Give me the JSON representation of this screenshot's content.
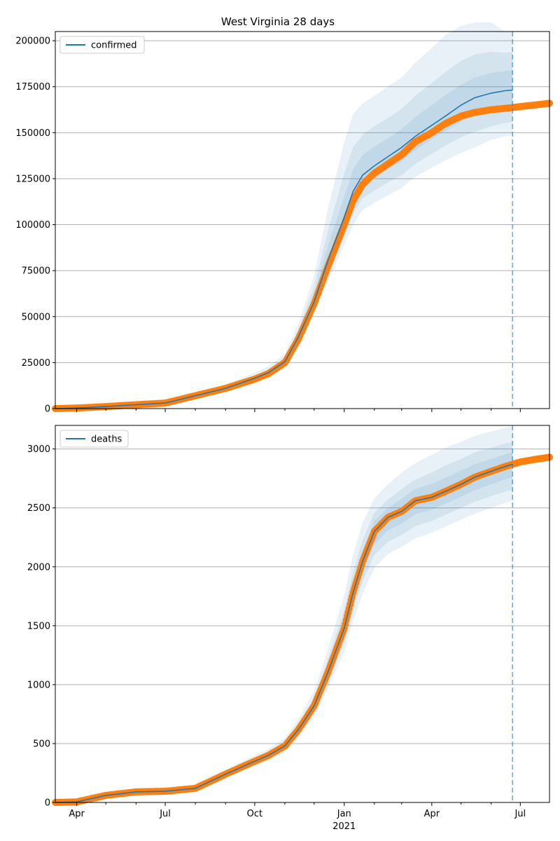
{
  "title": "West Virginia 28 days",
  "colors": {
    "forecast": "#1f77b4",
    "observed": "#ff7f0e",
    "band": "#1f77b4",
    "grid": "#b0b0b0"
  },
  "x_axis": {
    "min": "2020-03-10",
    "max": "2021-07-31",
    "ticks": [
      {
        "date": "2020-04-01",
        "label": "Apr"
      },
      {
        "date": "2020-07-01",
        "label": "Jul"
      },
      {
        "date": "2020-10-01",
        "label": "Oct"
      },
      {
        "date": "2021-01-01",
        "label": "Jan"
      },
      {
        "date": "2021-04-01",
        "label": "Apr"
      },
      {
        "date": "2021-07-01",
        "label": "Jul"
      }
    ],
    "year_label": "2021",
    "forecast_start": "2021-06-23"
  },
  "chart_data": [
    {
      "type": "line",
      "legend": "confirmed",
      "legend_position": "upper-left",
      "grid": "horizontal",
      "ylim": [
        0,
        205000
      ],
      "yticks": [
        {
          "value": 0,
          "label": "0"
        },
        {
          "value": 25000,
          "label": "25000"
        },
        {
          "value": 50000,
          "label": "50000"
        },
        {
          "value": 75000,
          "label": "75000"
        },
        {
          "value": 100000,
          "label": "100000"
        },
        {
          "value": 125000,
          "label": "125000"
        },
        {
          "value": 150000,
          "label": "150000"
        },
        {
          "value": 175000,
          "label": "175000"
        },
        {
          "value": 200000,
          "label": "200000"
        }
      ],
      "observed": {
        "x": [
          "2020-03-10",
          "2020-04-01",
          "2020-05-01",
          "2020-06-01",
          "2020-07-01",
          "2020-07-15",
          "2020-08-01",
          "2020-09-01",
          "2020-10-01",
          "2020-10-15",
          "2020-11-01",
          "2020-11-15",
          "2020-12-01",
          "2020-12-15",
          "2021-01-01",
          "2021-01-10",
          "2021-01-20",
          "2021-02-01",
          "2021-02-15",
          "2021-03-01",
          "2021-03-15",
          "2021-04-01",
          "2021-04-15",
          "2021-05-01",
          "2021-05-15",
          "2021-06-01",
          "2021-06-15",
          "2021-07-01",
          "2021-07-15",
          "2021-07-31"
        ],
        "y": [
          0,
          300,
          1100,
          2100,
          3000,
          4800,
          7000,
          11000,
          16000,
          19000,
          25000,
          38000,
          57000,
          77000,
          100000,
          113000,
          122000,
          128000,
          133000,
          138000,
          145000,
          150000,
          155000,
          159000,
          161000,
          162500,
          163200,
          164200,
          165000,
          166000
        ]
      },
      "forecast": {
        "x": [
          "2020-03-10",
          "2020-04-01",
          "2020-05-01",
          "2020-06-01",
          "2020-07-01",
          "2020-07-15",
          "2020-08-01",
          "2020-09-01",
          "2020-10-01",
          "2020-10-15",
          "2020-11-01",
          "2020-11-15",
          "2020-12-01",
          "2020-12-15",
          "2021-01-01",
          "2021-01-10",
          "2021-01-20",
          "2021-02-01",
          "2021-02-15",
          "2021-03-01",
          "2021-03-15",
          "2021-04-01",
          "2021-04-15",
          "2021-05-01",
          "2021-05-15",
          "2021-06-01",
          "2021-06-15",
          "2021-06-23"
        ],
        "y": [
          0,
          300,
          1100,
          2100,
          3000,
          4800,
          7000,
          11000,
          16500,
          19500,
          25500,
          39000,
          58000,
          80000,
          104000,
          118000,
          127000,
          132000,
          137000,
          142000,
          148000,
          154000,
          159000,
          165000,
          169000,
          171500,
          172800,
          173200
        ],
        "bands": [
          {
            "lower": [
              0,
              250,
              900,
              1800,
              2600,
              4200,
              6300,
              10000,
              14800,
              17500,
              23000,
              35000,
              52000,
              69000,
              89000,
              100000,
              108000,
              112000,
              116000,
              120000,
              126000,
              131000,
              135000,
              139000,
              142000,
              146000,
              148000,
              148500
            ],
            "upper": [
              0,
              380,
              1400,
              2600,
              3700,
              5800,
              8500,
              13000,
              19500,
              23000,
              30000,
              46000,
              72000,
              108000,
              145000,
              160000,
              166000,
              170000,
              175000,
              180000,
              188000,
              196000,
              203000,
              208000,
              210000,
              210000,
              205000,
              205000
            ]
          },
          {
            "lower": [
              0,
              270,
              960,
              1900,
              2750,
              4400,
              6600,
              10400,
              15300,
              18100,
              23800,
              36300,
              54000,
              72000,
              94000,
              106000,
              114500,
              118500,
              123000,
              127000,
              133000,
              138500,
              143000,
              147500,
              150500,
              153500,
              155300,
              155800
            ],
            "upper": [
              0,
              350,
              1280,
              2400,
              3400,
              5300,
              7800,
              12100,
              18000,
              21300,
              28000,
              43000,
              66000,
              96000,
              128000,
              142000,
              149000,
              153500,
              158000,
              163000,
              170000,
              177000,
              183000,
              189000,
              192500,
              194000,
              193500,
              193800
            ]
          },
          {
            "lower": [
              0,
              285,
              1030,
              2000,
              2880,
              4600,
              6800,
              10700,
              15900,
              18800,
              24600,
              37600,
              56000,
              76000,
              99000,
              112000,
              121000,
              125500,
              130000,
              134500,
              140500,
              146500,
              151000,
              156000,
              159500,
              162500,
              164300,
              164800
            ],
            "upper": [
              0,
              320,
              1180,
              2250,
              3200,
              5000,
              7300,
              11500,
              17200,
              20300,
              26600,
              41000,
              62000,
              88000,
              115000,
              130000,
              138000,
              142500,
              147000,
              152000,
              158500,
              165000,
              170500,
              176000,
              180000,
              182500,
              183500,
              183800
            ]
          }
        ]
      }
    },
    {
      "type": "line",
      "legend": "deaths",
      "legend_position": "upper-left",
      "grid": "horizontal",
      "ylim": [
        0,
        3200
      ],
      "yticks": [
        {
          "value": 0,
          "label": "0"
        },
        {
          "value": 500,
          "label": "500"
        },
        {
          "value": 1000,
          "label": "1000"
        },
        {
          "value": 1500,
          "label": "1500"
        },
        {
          "value": 2000,
          "label": "2000"
        },
        {
          "value": 2500,
          "label": "2500"
        },
        {
          "value": 3000,
          "label": "3000"
        }
      ],
      "observed": {
        "x": [
          "2020-03-10",
          "2020-04-01",
          "2020-05-01",
          "2020-06-01",
          "2020-07-01",
          "2020-08-01",
          "2020-09-01",
          "2020-10-01",
          "2020-10-15",
          "2020-11-01",
          "2020-11-15",
          "2020-12-01",
          "2020-12-15",
          "2021-01-01",
          "2021-01-10",
          "2021-01-20",
          "2021-02-01",
          "2021-02-15",
          "2021-03-01",
          "2021-03-15",
          "2021-04-01",
          "2021-04-15",
          "2021-05-01",
          "2021-05-15",
          "2021-06-01",
          "2021-06-15",
          "2021-07-01",
          "2021-07-15",
          "2021-07-31"
        ],
        "y": [
          0,
          5,
          60,
          90,
          95,
          120,
          240,
          350,
          400,
          480,
          620,
          820,
          1100,
          1480,
          1780,
          2050,
          2300,
          2420,
          2470,
          2560,
          2590,
          2640,
          2700,
          2760,
          2810,
          2850,
          2890,
          2910,
          2930
        ]
      },
      "forecast": {
        "x": [
          "2020-03-10",
          "2020-04-01",
          "2020-05-01",
          "2020-06-01",
          "2020-07-01",
          "2020-08-01",
          "2020-09-01",
          "2020-10-01",
          "2020-10-15",
          "2020-11-01",
          "2020-11-15",
          "2020-12-01",
          "2020-12-15",
          "2021-01-01",
          "2021-01-10",
          "2021-01-20",
          "2021-02-01",
          "2021-02-15",
          "2021-03-01",
          "2021-03-15",
          "2021-04-01",
          "2021-04-15",
          "2021-05-01",
          "2021-05-15",
          "2021-06-01",
          "2021-06-15",
          "2021-06-23"
        ],
        "y": [
          0,
          5,
          60,
          90,
          95,
          120,
          240,
          350,
          400,
          480,
          620,
          820,
          1100,
          1480,
          1780,
          2050,
          2300,
          2420,
          2470,
          2560,
          2590,
          2640,
          2700,
          2760,
          2810,
          2850,
          2870
        ],
        "bands": [
          {
            "lower": [
              0,
              4,
              50,
              78,
              82,
              105,
              215,
              310,
              355,
              425,
              550,
              720,
              960,
              1280,
              1540,
              1770,
              1990,
              2110,
              2170,
              2240,
              2290,
              2340,
              2400,
              2450,
              2500,
              2540,
              2560
            ],
            "upper": [
              0,
              6,
              70,
              104,
              110,
              140,
              275,
              400,
              455,
              545,
              705,
              945,
              1290,
              1760,
              2100,
              2380,
              2580,
              2700,
              2800,
              2880,
              2950,
              3010,
              3060,
              3110,
              3150,
              3180,
              3190
            ]
          },
          {
            "lower": [
              0,
              4.5,
              54,
              83,
              87,
              111,
              225,
              325,
              374,
              448,
              580,
              762,
              1016,
              1358,
              1636,
              1876,
              2100,
              2213,
              2270,
              2345,
              2390,
              2440,
              2500,
              2550,
              2600,
              2637,
              2655
            ],
            "upper": [
              0,
              5.6,
              66,
              98,
              104,
              131,
              258,
              377,
              428,
              514,
              665,
              888,
              1207,
              1635,
              1955,
              2225,
              2460,
              2570,
              2660,
              2740,
              2800,
              2860,
              2915,
              2970,
              3010,
              3045,
              3060
            ]
          },
          {
            "lower": [
              0,
              4.8,
              57,
              87,
              91,
              115,
              232,
              337,
              387,
              464,
              600,
              790,
              1058,
              1420,
              1708,
              1963,
              2190,
              2310,
              2365,
              2445,
              2485,
              2535,
              2595,
              2650,
              2700,
              2740,
              2758
            ],
            "upper": [
              0,
              5.3,
              63,
              94,
              100,
              126,
              249,
              364,
              414,
              497,
              642,
              853,
              1149,
              1552,
              1860,
              2133,
              2390,
              2500,
              2580,
              2660,
              2705,
              2755,
              2815,
              2870,
              2915,
              2955,
              2972
            ]
          }
        ]
      }
    }
  ]
}
